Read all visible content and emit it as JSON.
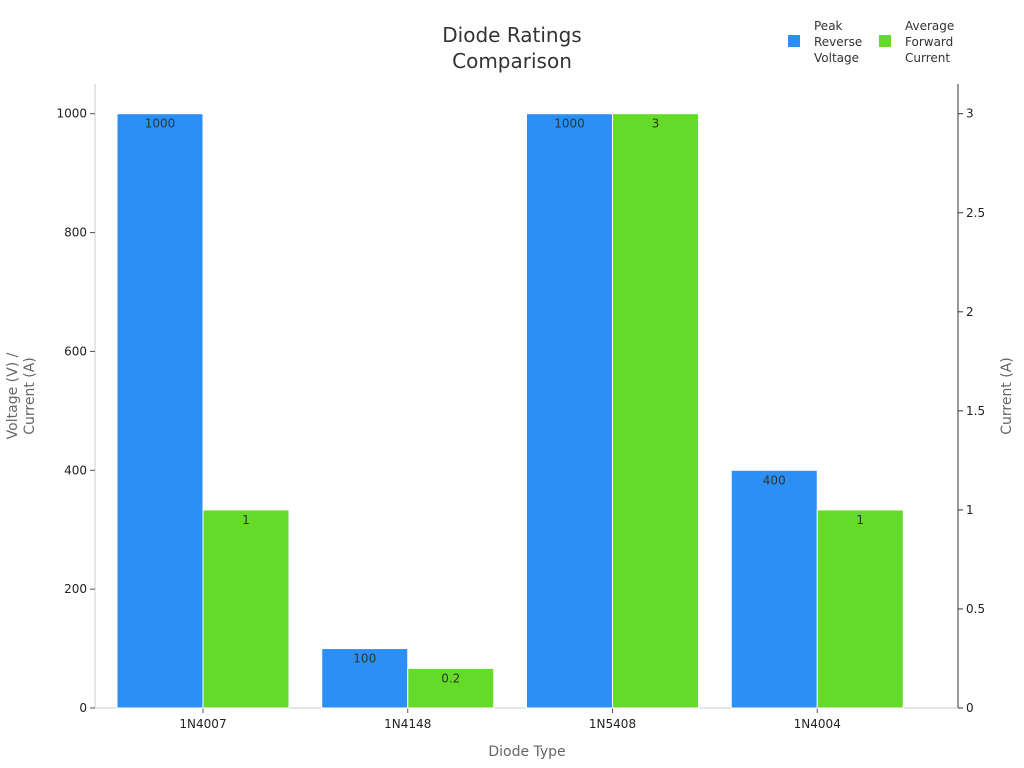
{
  "chart_data": {
    "type": "bar",
    "title": "Diode Ratings Comparison",
    "title_lines": [
      "Diode Ratings",
      "Comparison"
    ],
    "xlabel": "Diode Type",
    "ylabel_lines": [
      "Voltage (V) /",
      "Current (A)"
    ],
    "y2label": "Current (A)",
    "categories": [
      "1N4007",
      "1N4148",
      "1N5408",
      "1N4004"
    ],
    "series": [
      {
        "name": "Peak Reverse Voltage",
        "legend_lines": [
          "Peak",
          "Reverse",
          "Voltage"
        ],
        "values": [
          1000,
          100,
          1000,
          400
        ],
        "value_labels": [
          "1000",
          "100",
          "1000",
          "400"
        ],
        "axis": "left",
        "color": "#2b8ff5"
      },
      {
        "name": "Average Forward Current",
        "legend_lines": [
          "Average",
          "Forward",
          "Current"
        ],
        "values": [
          1,
          0.2,
          3,
          1
        ],
        "value_labels": [
          "1",
          "0.2",
          "3",
          "1"
        ],
        "axis": "right",
        "color": "#64da29"
      }
    ],
    "ylim": [
      0,
      1050
    ],
    "y2lim": [
      0,
      3.15
    ],
    "yticks": [
      0,
      200,
      400,
      600,
      800,
      1000
    ],
    "ytick_labels": [
      "0",
      "200",
      "400",
      "600",
      "800",
      "1000"
    ],
    "y2ticks": [
      0,
      0.5,
      1,
      1.5,
      2,
      2.5,
      3
    ],
    "y2tick_labels": [
      "0",
      "0.5",
      "1",
      "1.5",
      "2",
      "2.5",
      "3"
    ],
    "grid": false,
    "legend_position": "top-right"
  }
}
